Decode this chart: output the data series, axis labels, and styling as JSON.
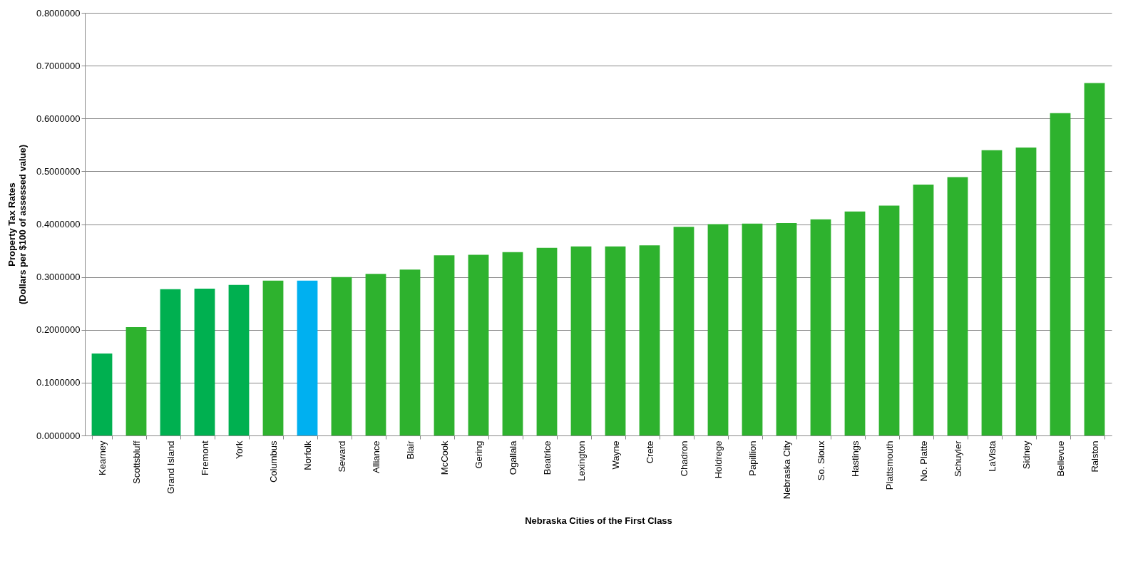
{
  "chart_data": {
    "type": "bar",
    "xlabel": "Nebraska Cities of the First Class",
    "ylabel": "Property Tax Rates\n(Dollars per $100 of assessed value)",
    "categories": [
      "Kearney",
      "Scottsbluff",
      "Grand Island",
      "Fremont",
      "York",
      "Columbus",
      "Norfolk",
      "Seward",
      "Alliance",
      "Blair",
      "McCook",
      "Gering",
      "Ogallala",
      "Beatrice",
      "Lexington",
      "Wayne",
      "Crete",
      "Chadron",
      "Holdrege",
      "Papillion",
      "Nebraska City",
      "So. Sioux",
      "Hastings",
      "Plattsmouth",
      "No. Platte",
      "Schuyler",
      "LaVista",
      "Sidney",
      "Bellevue",
      "Ralston"
    ],
    "values": [
      0.155,
      0.205,
      0.277,
      0.278,
      0.285,
      0.293,
      0.293,
      0.3,
      0.306,
      0.314,
      0.341,
      0.342,
      0.347,
      0.355,
      0.358,
      0.358,
      0.36,
      0.395,
      0.4,
      0.401,
      0.402,
      0.409,
      0.424,
      0.435,
      0.475,
      0.489,
      0.54,
      0.545,
      0.61,
      0.667
    ],
    "colors": [
      "#00b050",
      "#2eb22e",
      "#00b050",
      "#00b050",
      "#00b050",
      "#2eb22e",
      "#00b0f0",
      "#2eb22e",
      "#2eb22e",
      "#2eb22e",
      "#2eb22e",
      "#2eb22e",
      "#2eb22e",
      "#2eb22e",
      "#2eb22e",
      "#2eb22e",
      "#2eb22e",
      "#2eb22e",
      "#2eb22e",
      "#2eb22e",
      "#2eb22e",
      "#2eb22e",
      "#2eb22e",
      "#2eb22e",
      "#2eb22e",
      "#2eb22e",
      "#2eb22e",
      "#2eb22e",
      "#2eb22e",
      "#2eb22e"
    ],
    "ylim": [
      0,
      0.8
    ],
    "yticks": [
      {
        "value": 0,
        "label": "0.0000000"
      },
      {
        "value": 0.1,
        "label": "0.1000000"
      },
      {
        "value": 0.2,
        "label": "0.2000000"
      },
      {
        "value": 0.3,
        "label": "0.3000000"
      },
      {
        "value": 0.4,
        "label": "0.4000000"
      },
      {
        "value": 0.5,
        "label": "0.5000000"
      },
      {
        "value": 0.6,
        "label": "0.6000000"
      },
      {
        "value": 0.7,
        "label": "0.7000000"
      },
      {
        "value": 0.8,
        "label": "0.8000000"
      }
    ],
    "grid": "y"
  }
}
